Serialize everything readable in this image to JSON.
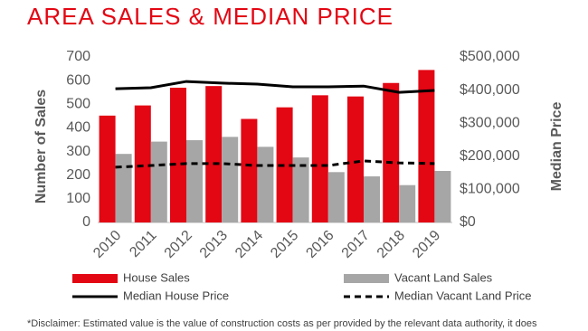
{
  "chart_data": {
    "type": "bar",
    "title": "AREA SALES & MEDIAN PRICE",
    "categories": [
      "2010",
      "2011",
      "2012",
      "2013",
      "2014",
      "2015",
      "2016",
      "2017",
      "2018",
      "2019"
    ],
    "series": [
      {
        "name": "House Sales",
        "type": "bar",
        "color": "#e30613",
        "values": [
          452,
          495,
          570,
          577,
          438,
          487,
          538,
          533,
          590,
          645
        ]
      },
      {
        "name": "Vacant Land Sales",
        "type": "bar",
        "color": "#a6a6a6",
        "values": [
          290,
          342,
          348,
          362,
          320,
          275,
          213,
          195,
          158,
          218
        ]
      },
      {
        "name": "Median House Price",
        "type": "line",
        "color": "#000000",
        "dashed": false,
        "axis": "y2",
        "values": [
          404000,
          407000,
          426000,
          421000,
          418000,
          410000,
          410000,
          412000,
          393000,
          399000
        ]
      },
      {
        "name": "Median Vacant Land Price",
        "type": "line",
        "color": "#000000",
        "dashed": true,
        "axis": "y2",
        "values": [
          167000,
          172000,
          178000,
          178000,
          172000,
          172000,
          172000,
          186000,
          180000,
          178000
        ]
      }
    ],
    "ylabel": "Number of Sales",
    "y2label": "Median Price",
    "ylim": [
      0,
      700
    ],
    "yticks": [
      0,
      100,
      200,
      300,
      400,
      500,
      600,
      700
    ],
    "y2lim": [
      0,
      500000
    ],
    "y2ticks": [
      {
        "value": 0,
        "label": "$0"
      },
      {
        "value": 100000,
        "label": "$100,000"
      },
      {
        "value": 200000,
        "label": "$200,000"
      },
      {
        "value": 300000,
        "label": "$300,000"
      },
      {
        "value": 400000,
        "label": "$400,000"
      },
      {
        "value": 500000,
        "label": "$500,000"
      }
    ],
    "grid": false,
    "footnote": "*Disclaimer: Estimated value is the value of construction costs as per provided by the relevant data authority, it does"
  }
}
